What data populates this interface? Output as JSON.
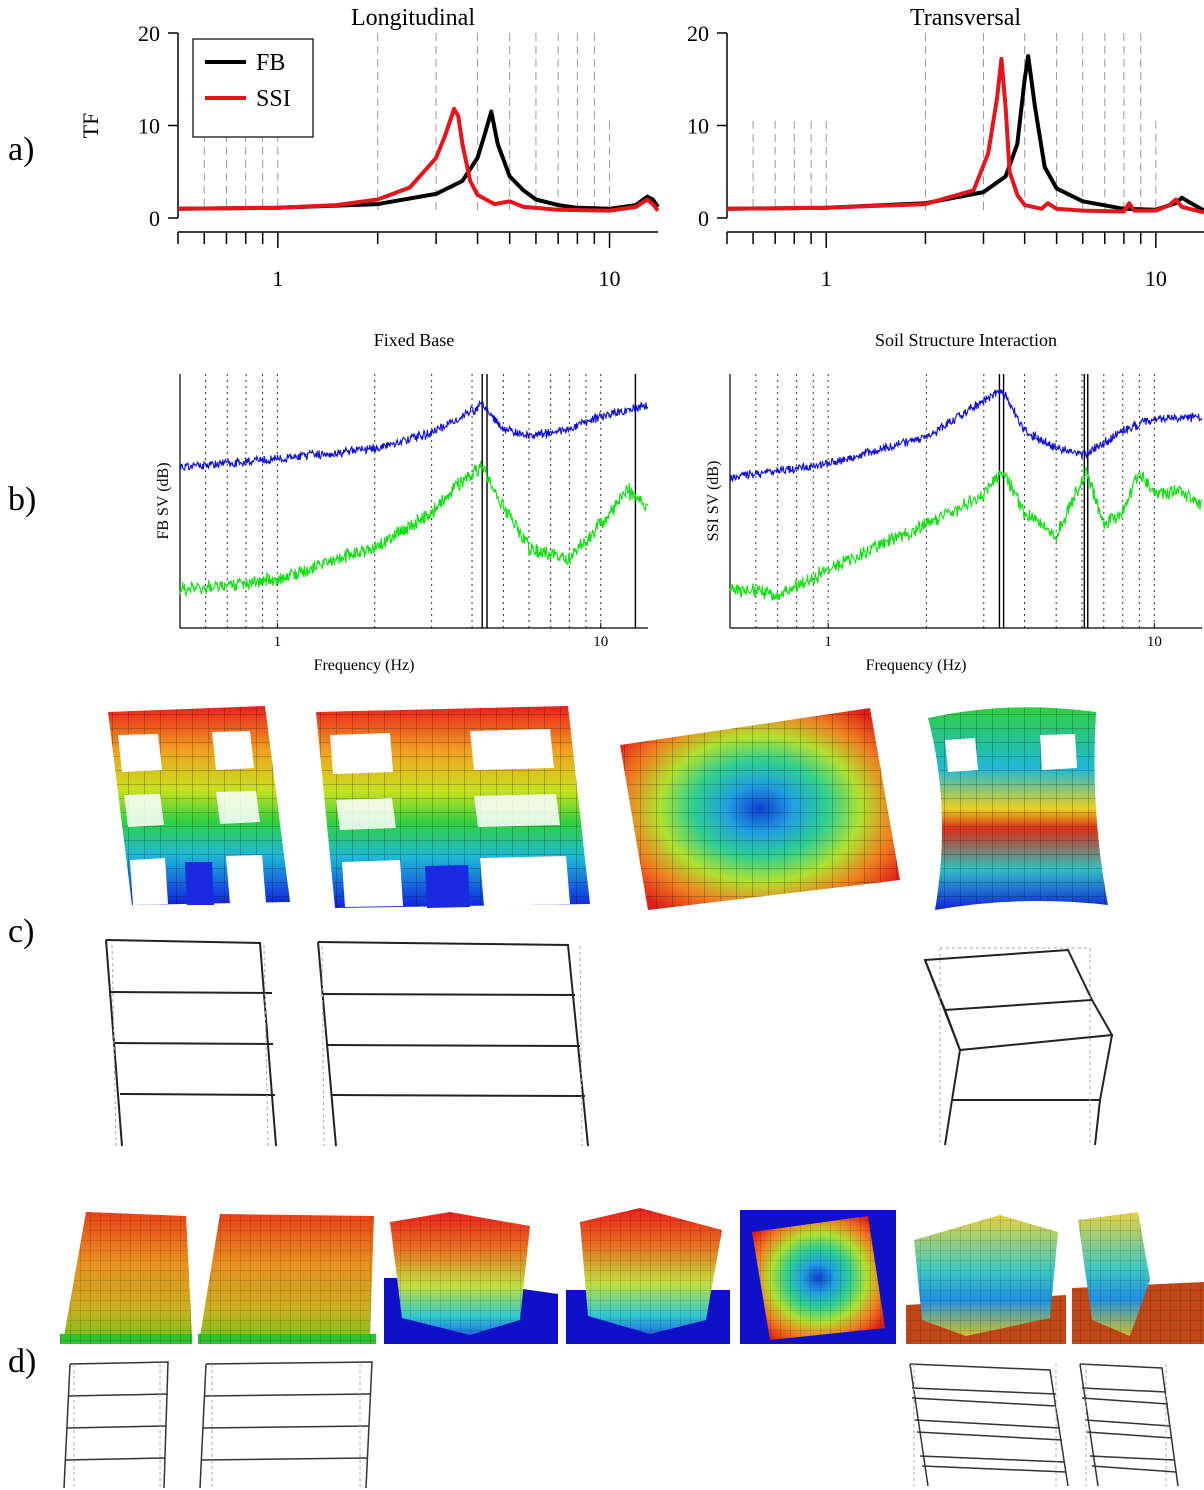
{
  "panel_labels": [
    "a)",
    "b)",
    "c)",
    "d)"
  ],
  "colors": {
    "fb": "#000000",
    "ssi": "#e8141c",
    "sv_upper": "#1010d8",
    "sv_lower": "#10e010",
    "grid": "#999999"
  },
  "chart_data": [
    {
      "type": "line",
      "panel": "a)",
      "title": "Longitudinal",
      "xlabel": "",
      "ylabel": "TF",
      "xscale": "log",
      "xlim": [
        0.5,
        14
      ],
      "ylim": [
        0,
        20
      ],
      "xticks": [
        "1",
        "10"
      ],
      "yticks": [
        "0",
        "10",
        "20"
      ],
      "legend": {
        "placement": "top-left",
        "entries": [
          "FB",
          "SSI"
        ]
      },
      "series": [
        {
          "name": "FB",
          "color": "#000000",
          "x": [
            0.5,
            1,
            2,
            3,
            3.6,
            4,
            4.2,
            4.4,
            4.6,
            5,
            5.5,
            6,
            7,
            8,
            10,
            12,
            13,
            13.5,
            14
          ],
          "y": [
            1,
            1.1,
            1.5,
            2.6,
            4,
            6.5,
            9,
            11.5,
            8,
            4.5,
            3,
            2,
            1.4,
            1.1,
            1.0,
            1.4,
            2.3,
            2.0,
            1.2
          ]
        },
        {
          "name": "SSI",
          "color": "#e8141c",
          "x": [
            0.5,
            1,
            1.5,
            2,
            2.5,
            3,
            3.2,
            3.4,
            3.5,
            3.6,
            3.8,
            4.0,
            4.5,
            5,
            5.5,
            7,
            10,
            12,
            13,
            13.5,
            14
          ],
          "y": [
            1,
            1.1,
            1.4,
            2,
            3.3,
            6.5,
            9,
            11.8,
            11,
            8,
            4,
            2.5,
            1.5,
            1.8,
            1.2,
            0.9,
            0.8,
            1.2,
            2.0,
            1.5,
            0.8
          ]
        }
      ]
    },
    {
      "type": "line",
      "panel": "a)",
      "title": "Transversal",
      "xlabel": "",
      "ylabel": "",
      "xscale": "log",
      "xlim": [
        0.5,
        14
      ],
      "ylim": [
        0,
        20
      ],
      "xticks": [
        "1",
        "10"
      ],
      "yticks": [
        "0",
        "10",
        "20"
      ],
      "series": [
        {
          "name": "FB",
          "color": "#000000",
          "x": [
            0.5,
            1,
            2,
            3,
            3.5,
            3.8,
            4.0,
            4.1,
            4.3,
            4.6,
            5,
            6,
            8,
            10,
            11.5,
            12,
            12.5,
            14
          ],
          "y": [
            1,
            1.1,
            1.6,
            2.8,
            4.5,
            8,
            15,
            17.5,
            12,
            5.5,
            3.2,
            1.8,
            1.0,
            0.9,
            1.6,
            2.2,
            1.8,
            0.8
          ]
        },
        {
          "name": "SSI",
          "color": "#e8141c",
          "x": [
            0.5,
            1,
            2,
            2.8,
            3.1,
            3.3,
            3.4,
            3.5,
            3.6,
            3.8,
            4.0,
            4.5,
            4.7,
            5,
            6,
            8,
            8.3,
            8.6,
            10,
            11,
            11.5,
            12,
            14
          ],
          "y": [
            1,
            1.1,
            1.5,
            3,
            7,
            13,
            17.2,
            12,
            5,
            2.5,
            1.4,
            1.0,
            1.6,
            1.0,
            0.8,
            0.7,
            1.6,
            0.8,
            0.8,
            1.4,
            2.0,
            1.2,
            0.6
          ]
        }
      ]
    },
    {
      "type": "line",
      "panel": "b)",
      "title": "Fixed Base",
      "xlabel": "Frequency (Hz)",
      "ylabel": "FB SV (dB)",
      "xscale": "log",
      "xlim": [
        0.5,
        14
      ],
      "xticks": [
        "1",
        "10"
      ],
      "peak_lines_hz": [
        4.3,
        4.45,
        12.8
      ],
      "series": [
        {
          "name": "",
          "color": "#1010d8",
          "x": [
            0.5,
            1,
            2,
            3,
            4.3,
            5,
            6,
            8,
            10,
            14
          ],
          "y": [
            0.29,
            0.36,
            0.45,
            0.58,
            0.82,
            0.62,
            0.55,
            0.62,
            0.72,
            0.82
          ]
        },
        {
          "name": "",
          "color": "#10e010",
          "x": [
            0.5,
            0.7,
            1,
            1.5,
            2,
            3,
            3.5,
            4.3,
            5,
            6,
            8,
            10,
            12,
            14
          ],
          "y": [
            -0.75,
            -0.72,
            -0.68,
            -0.5,
            -0.4,
            -0.1,
            0.1,
            0.3,
            -0.05,
            -0.4,
            -0.5,
            -0.2,
            0.1,
            -0.05
          ]
        }
      ]
    },
    {
      "type": "line",
      "panel": "b)",
      "title": "Soil Structure Interaction",
      "xlabel": "Frequency (Hz)",
      "ylabel": "SSI SV (dB)",
      "xscale": "log",
      "xlim": [
        0.5,
        14
      ],
      "xticks": [
        "1",
        "10"
      ],
      "peak_lines_hz": [
        3.35,
        3.45,
        6.1,
        6.25
      ],
      "series": [
        {
          "name": "",
          "color": "#1010d8",
          "x": [
            0.5,
            1,
            2,
            3.4,
            4,
            5,
            6.2,
            8,
            10,
            14
          ],
          "y": [
            0.2,
            0.32,
            0.55,
            0.95,
            0.6,
            0.45,
            0.4,
            0.6,
            0.7,
            0.72
          ]
        },
        {
          "name": "",
          "color": "#10e010",
          "x": [
            0.5,
            0.7,
            1,
            1.5,
            2,
            3,
            3.4,
            4,
            5,
            6.2,
            7,
            8,
            9,
            10,
            12,
            14
          ],
          "y": [
            -0.75,
            -0.8,
            -0.6,
            -0.35,
            -0.2,
            0.05,
            0.28,
            -0.1,
            -0.3,
            0.25,
            -0.2,
            -0.1,
            0.25,
            0.05,
            0.1,
            -0.05
          ]
        }
      ]
    }
  ]
}
